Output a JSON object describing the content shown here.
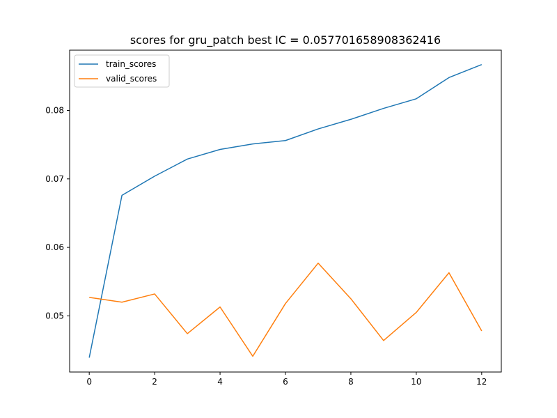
{
  "chart_data": {
    "type": "line",
    "title": "scores for gru_patch best IC = 0.057701658908362416",
    "xlabel": "",
    "ylabel": "",
    "x": [
      0,
      1,
      2,
      3,
      4,
      5,
      6,
      7,
      8,
      9,
      10,
      11,
      12
    ],
    "xlim": [
      -0.6,
      12.6
    ],
    "ylim": [
      0.0418,
      0.0888
    ],
    "xticks": [
      0,
      2,
      4,
      6,
      8,
      10,
      12
    ],
    "yticks": [
      0.05,
      0.06,
      0.07,
      0.08
    ],
    "ytick_labels": [
      "0.05",
      "0.06",
      "0.07",
      "0.08"
    ],
    "grid": false,
    "legend_position": "top-left",
    "series": [
      {
        "name": "train_scores",
        "color": "#1f77b4",
        "values": [
          0.0439,
          0.0676,
          0.0704,
          0.0729,
          0.0743,
          0.0751,
          0.0756,
          0.0773,
          0.0787,
          0.0803,
          0.0817,
          0.0848,
          0.0867
        ]
      },
      {
        "name": "valid_scores",
        "color": "#ff7f0e",
        "values": [
          0.0527,
          0.052,
          0.0532,
          0.0474,
          0.0513,
          0.0441,
          0.0518,
          0.0577,
          0.0525,
          0.0464,
          0.0505,
          0.0563,
          0.0478
        ]
      }
    ]
  }
}
